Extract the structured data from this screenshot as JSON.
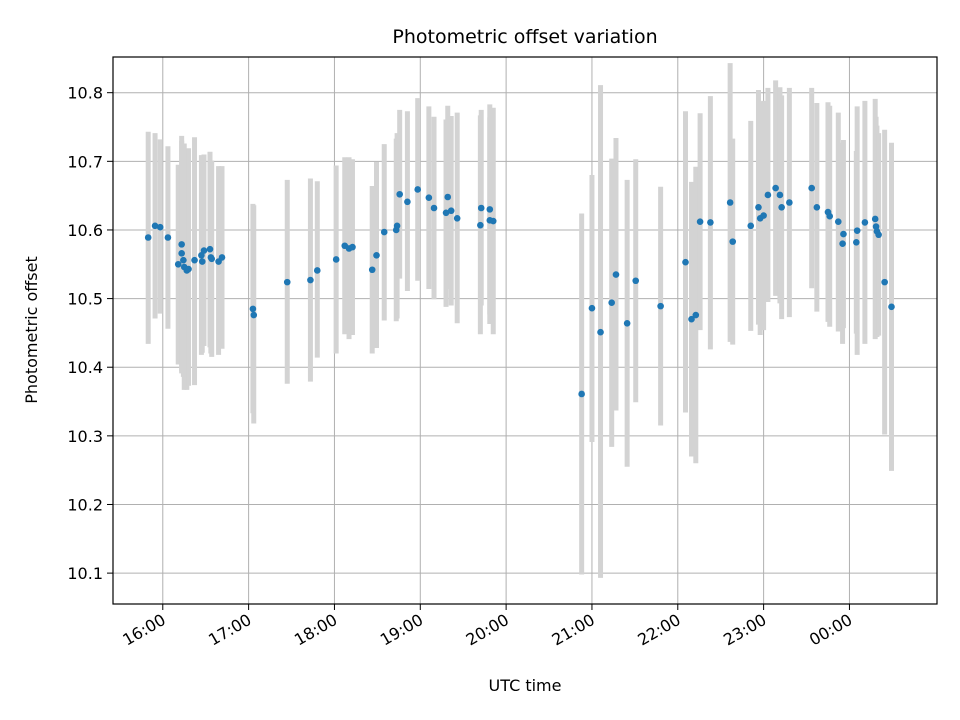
{
  "chart_data": {
    "type": "scatter",
    "title": "Photometric offset variation",
    "xlabel": "UTC time",
    "ylabel": "Photometric offset",
    "x_ticks": [
      "16:00",
      "17:00",
      "18:00",
      "19:00",
      "20:00",
      "21:00",
      "22:00",
      "23:00",
      "00:00"
    ],
    "x_tick_hours": [
      16,
      17,
      18,
      19,
      20,
      21,
      22,
      23,
      24
    ],
    "xlim": [
      15.42,
      25.02
    ],
    "y_ticks": [
      "10.1",
      "10.2",
      "10.3",
      "10.4",
      "10.5",
      "10.6",
      "10.7",
      "10.8"
    ],
    "ylim": [
      10.055,
      10.852
    ],
    "grid": true,
    "colors": {
      "points": "#1f77b4",
      "errorbars": "#d3d3d3",
      "grid": "#b0b0b0"
    },
    "series": [
      {
        "hours": [
          15.83,
          15.91,
          15.97,
          16.06,
          16.18,
          16.22,
          16.22,
          16.24,
          16.25,
          16.28,
          16.3,
          16.37,
          16.45,
          16.46,
          16.48,
          16.55,
          16.56,
          16.57,
          16.65,
          16.69,
          17.05,
          17.06,
          17.45,
          17.72,
          17.8,
          18.02,
          18.12,
          18.17,
          18.21,
          18.44,
          18.49,
          18.58,
          18.72,
          18.73,
          18.76,
          18.85,
          18.97,
          19.1,
          19.16,
          19.3,
          19.32,
          19.36,
          19.43,
          19.7,
          19.71,
          19.81,
          19.81,
          19.85,
          20.88,
          21.0,
          21.1,
          21.23,
          21.28,
          21.41,
          21.51,
          21.8,
          22.09,
          22.16,
          22.21,
          22.26,
          22.38,
          22.61,
          22.64,
          22.85,
          22.94,
          22.96,
          23.0,
          23.05,
          23.14,
          23.19,
          23.21,
          23.3,
          23.56,
          23.62,
          23.75,
          23.77,
          23.87,
          23.92,
          23.93,
          24.08,
          24.09,
          24.18,
          24.3,
          24.31,
          24.32,
          24.34,
          24.41,
          24.49
        ],
        "values": [
          10.589,
          10.606,
          10.604,
          10.589,
          10.55,
          10.579,
          10.566,
          10.556,
          10.546,
          10.541,
          10.543,
          10.556,
          10.563,
          10.554,
          10.57,
          10.572,
          10.56,
          10.558,
          10.554,
          10.56,
          10.485,
          10.476,
          10.524,
          10.527,
          10.541,
          10.557,
          10.577,
          10.573,
          10.575,
          10.542,
          10.563,
          10.597,
          10.6,
          10.606,
          10.652,
          10.641,
          10.659,
          10.647,
          10.632,
          10.625,
          10.648,
          10.628,
          10.617,
          10.607,
          10.632,
          10.614,
          10.63,
          10.613,
          10.361,
          10.486,
          10.451,
          10.494,
          10.535,
          10.464,
          10.526,
          10.489,
          10.553,
          10.47,
          10.476,
          10.612,
          10.611,
          10.64,
          10.583,
          10.606,
          10.633,
          10.617,
          10.621,
          10.651,
          10.661,
          10.651,
          10.633,
          10.64,
          10.661,
          10.633,
          10.626,
          10.62,
          10.612,
          10.58,
          10.594,
          10.582,
          10.599,
          10.611,
          10.616,
          10.605,
          10.598,
          10.593,
          10.524,
          10.488
        ],
        "err_low": [
          10.434,
          10.471,
          10.478,
          10.456,
          10.404,
          10.391,
          10.394,
          10.386,
          10.367,
          10.367,
          10.373,
          10.374,
          10.418,
          10.421,
          10.431,
          10.429,
          10.42,
          10.415,
          10.418,
          10.427,
          10.333,
          10.318,
          10.376,
          10.379,
          10.414,
          10.42,
          10.448,
          10.441,
          10.447,
          10.42,
          10.428,
          10.468,
          10.467,
          10.471,
          10.529,
          10.511,
          10.526,
          10.514,
          10.499,
          10.488,
          10.514,
          10.49,
          10.464,
          10.448,
          10.49,
          10.463,
          10.477,
          10.448,
          10.098,
          10.291,
          10.093,
          10.284,
          10.337,
          10.255,
          10.349,
          10.315,
          10.334,
          10.27,
          10.26,
          10.454,
          10.426,
          10.437,
          10.433,
          10.453,
          10.462,
          10.447,
          10.454,
          10.495,
          10.504,
          10.493,
          10.47,
          10.473,
          10.515,
          10.481,
          10.466,
          10.459,
          10.452,
          10.434,
          10.457,
          10.449,
          10.418,
          10.434,
          10.441,
          10.445,
          10.444,
          10.446,
          10.302,
          10.249
        ],
        "err_high": [
          10.743,
          10.741,
          10.732,
          10.722,
          10.695,
          10.737,
          10.73,
          10.724,
          10.726,
          10.71,
          10.719,
          10.735,
          10.709,
          10.688,
          10.71,
          10.714,
          10.699,
          10.701,
          10.693,
          10.693,
          10.638,
          10.636,
          10.673,
          10.675,
          10.671,
          10.694,
          10.706,
          10.706,
          10.703,
          10.664,
          10.699,
          10.725,
          10.733,
          10.741,
          10.775,
          10.773,
          10.792,
          10.78,
          10.765,
          10.761,
          10.781,
          10.766,
          10.771,
          10.767,
          10.775,
          10.764,
          10.783,
          10.778,
          10.624,
          10.68,
          10.811,
          10.704,
          10.734,
          10.673,
          10.703,
          10.663,
          10.773,
          10.67,
          10.692,
          10.77,
          10.795,
          10.843,
          10.733,
          10.759,
          10.804,
          10.787,
          10.788,
          10.807,
          10.818,
          10.808,
          10.796,
          10.807,
          10.807,
          10.785,
          10.786,
          10.781,
          10.771,
          10.727,
          10.731,
          10.715,
          10.78,
          10.788,
          10.791,
          10.765,
          10.752,
          10.741,
          10.746,
          10.727
        ]
      }
    ]
  }
}
